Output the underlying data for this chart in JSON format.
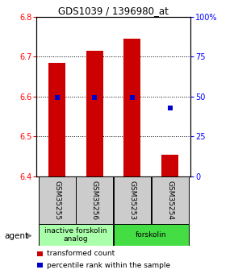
{
  "title": "GDS1039 / 1396980_at",
  "samples": [
    "GSM35255",
    "GSM35256",
    "GSM35253",
    "GSM35254"
  ],
  "bar_values": [
    6.685,
    6.715,
    6.745,
    6.455
  ],
  "bar_bottom": 6.4,
  "percentile_values": [
    6.597,
    6.597,
    6.597,
    6.572
  ],
  "ylim": [
    6.4,
    6.8
  ],
  "yticks_left": [
    6.4,
    6.5,
    6.6,
    6.7,
    6.8
  ],
  "yticks_right": [
    0,
    25,
    50,
    75,
    100
  ],
  "bar_color": "#cc0000",
  "percentile_color": "#0000cc",
  "agent_groups": [
    {
      "label": "inactive forskolin\nanalog",
      "span": [
        0,
        2
      ],
      "color": "#aaffaa"
    },
    {
      "label": "forskolin",
      "span": [
        2,
        4
      ],
      "color": "#44dd44"
    }
  ],
  "legend_items": [
    {
      "color": "#cc0000",
      "label": "transformed count"
    },
    {
      "color": "#0000cc",
      "label": "percentile rank within the sample"
    }
  ],
  "background_color": "#ffffff",
  "sample_box_color": "#cccccc"
}
